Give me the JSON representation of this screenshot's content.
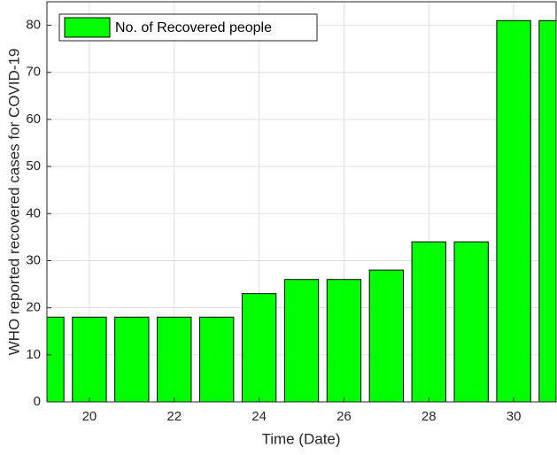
{
  "chart_data": {
    "type": "bar",
    "x": [
      19,
      20,
      21,
      22,
      23,
      24,
      25,
      26,
      27,
      28,
      29,
      30,
      31
    ],
    "series": [
      {
        "name": "No. of Recovered people",
        "color": "#00ff00",
        "values": [
          18,
          18,
          18,
          18,
          18,
          23,
          26,
          26,
          28,
          34,
          34,
          81,
          81
        ]
      }
    ],
    "xlabel": "Time (Date)",
    "ylabel": "WHO reported recovered cases for COVID-19",
    "xlim": [
      19,
      31
    ],
    "xticks": [
      20,
      22,
      24,
      26,
      28,
      30
    ],
    "ylim": [
      0,
      85
    ],
    "yticks": [
      0,
      10,
      20,
      30,
      40,
      50,
      60,
      70,
      80
    ],
    "grid": true,
    "legend": "northwest"
  }
}
